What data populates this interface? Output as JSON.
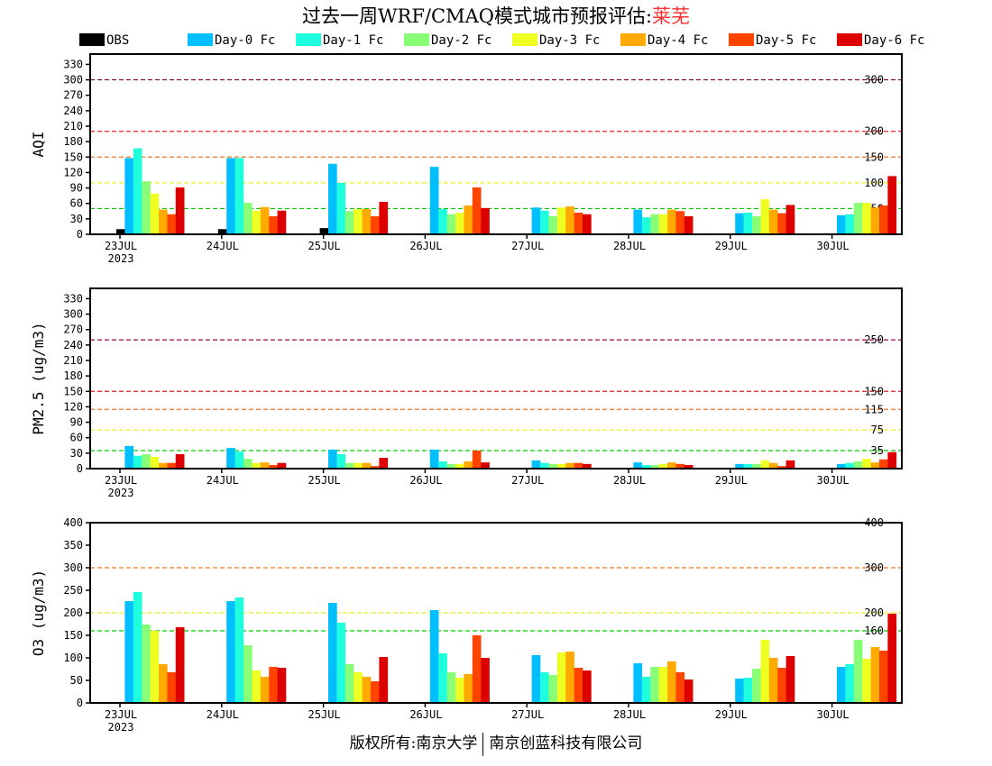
{
  "title": {
    "prefix": "过去一周WRF/CMAQ模式城市预报评估:",
    "city": "莱芜"
  },
  "footer": {
    "left": "版权所有:南京大学",
    "right": "南京创蓝科技有限公司"
  },
  "colors": {
    "OBS": "#000000",
    "Day-0 Fc": "#00bfff",
    "Day-1 Fc": "#20ffdd",
    "Day-2 Fc": "#88ff77",
    "Day-3 Fc": "#eeff22",
    "Day-4 Fc": "#ffaa00",
    "Day-5 Fc": "#ff4400",
    "Day-6 Fc": "#dd0000"
  },
  "chart_data": [
    {
      "type": "bar",
      "ylabel": "AQI",
      "ylim": [
        0,
        350
      ],
      "yticks": [
        0,
        30,
        60,
        90,
        120,
        150,
        180,
        210,
        240,
        270,
        300,
        330
      ],
      "categories": [
        "23JUL",
        "24JUL",
        "25JUL",
        "26JUL",
        "27JUL",
        "28JUL",
        "29JUL",
        "30JUL"
      ],
      "first_category_sub": "2023",
      "legend": [
        "OBS",
        "Day-0 Fc",
        "Day-1 Fc",
        "Day-2 Fc",
        "Day-3 Fc",
        "Day-4 Fc",
        "Day-5 Fc",
        "Day-6 Fc"
      ],
      "legend_position": "top",
      "ref_lines": [
        {
          "value": 300,
          "label": "300",
          "color": "#800040"
        },
        {
          "value": 200,
          "label": "200",
          "color": "#ff2020"
        },
        {
          "value": 150,
          "label": "150",
          "color": "#ee7722"
        },
        {
          "value": 100,
          "label": "100",
          "color": "#eeee22"
        },
        {
          "value": 50,
          "label": "50",
          "color": "#00cc00"
        }
      ],
      "series": [
        {
          "name": "OBS",
          "values": [
            10,
            10,
            12,
            null,
            null,
            null,
            null,
            null
          ]
        },
        {
          "name": "Day-0 Fc",
          "values": [
            148,
            148,
            137,
            131,
            52,
            48,
            41,
            37
          ]
        },
        {
          "name": "Day-1 Fc",
          "values": [
            167,
            148,
            100,
            49,
            46,
            33,
            42,
            39
          ]
        },
        {
          "name": "Day-2 Fc",
          "values": [
            103,
            61,
            45,
            39,
            35,
            39,
            35,
            61
          ]
        },
        {
          "name": "Day-3 Fc",
          "values": [
            79,
            46,
            49,
            42,
            52,
            39,
            68,
            61
          ]
        },
        {
          "name": "Day-4 Fc",
          "values": [
            48,
            53,
            49,
            56,
            54,
            48,
            48,
            52
          ]
        },
        {
          "name": "Day-5 Fc",
          "values": [
            39,
            35,
            35,
            91,
            42,
            45,
            41,
            56
          ]
        },
        {
          "name": "Day-6 Fc",
          "values": [
            91,
            46,
            63,
            51,
            39,
            35,
            57,
            113
          ]
        }
      ]
    },
    {
      "type": "bar",
      "ylabel": "PM2.5 (ug/m3)",
      "ylim": [
        0,
        350
      ],
      "yticks": [
        0,
        30,
        60,
        90,
        120,
        150,
        180,
        210,
        240,
        270,
        300,
        330
      ],
      "categories": [
        "23JUL",
        "24JUL",
        "25JUL",
        "26JUL",
        "27JUL",
        "28JUL",
        "29JUL",
        "30JUL"
      ],
      "first_category_sub": "2023",
      "ref_lines": [
        {
          "value": 250,
          "label": "250",
          "color": "#aa0055"
        },
        {
          "value": 150,
          "label": "150",
          "color": "#dd2020"
        },
        {
          "value": 115,
          "label": "115",
          "color": "#ee7722"
        },
        {
          "value": 75,
          "label": "75",
          "color": "#eeee22"
        },
        {
          "value": 35,
          "label": "35",
          "color": "#00cc00"
        }
      ],
      "series": [
        {
          "name": "OBS",
          "values": [
            null,
            null,
            null,
            null,
            null,
            null,
            null,
            null
          ]
        },
        {
          "name": "Day-0 Fc",
          "values": [
            44,
            40,
            37,
            37,
            16,
            12,
            9,
            9
          ]
        },
        {
          "name": "Day-1 Fc",
          "values": [
            25,
            33,
            28,
            14,
            11,
            7,
            9,
            11
          ]
        },
        {
          "name": "Day-2 Fc",
          "values": [
            28,
            19,
            11,
            9,
            9,
            7,
            9,
            14
          ]
        },
        {
          "name": "Day-3 Fc",
          "values": [
            23,
            11,
            11,
            9,
            9,
            9,
            16,
            19
          ]
        },
        {
          "name": "Day-4 Fc",
          "values": [
            11,
            12,
            11,
            14,
            11,
            12,
            11,
            12
          ]
        },
        {
          "name": "Day-5 Fc",
          "values": [
            11,
            7,
            5,
            35,
            11,
            9,
            5,
            18
          ]
        },
        {
          "name": "Day-6 Fc",
          "values": [
            28,
            11,
            21,
            12,
            9,
            7,
            16,
            32
          ]
        }
      ]
    },
    {
      "type": "bar",
      "ylabel": "O3 (ug/m3)",
      "ylim": [
        0,
        400
      ],
      "yticks": [
        0,
        50,
        100,
        150,
        200,
        250,
        300,
        350,
        400
      ],
      "categories": [
        "23JUL",
        "24JUL",
        "25JUL",
        "26JUL",
        "27JUL",
        "28JUL",
        "29JUL",
        "30JUL"
      ],
      "first_category_sub": "2023",
      "ref_lines": [
        {
          "value": 400,
          "label": "400",
          "color": "#ff2020"
        },
        {
          "value": 300,
          "label": "300",
          "color": "#ee7722"
        },
        {
          "value": 200,
          "label": "200",
          "color": "#eeee22"
        },
        {
          "value": 160,
          "label": "160",
          "color": "#00cc00"
        }
      ],
      "series": [
        {
          "name": "OBS",
          "values": [
            null,
            null,
            null,
            null,
            null,
            null,
            null,
            null
          ]
        },
        {
          "name": "Day-0 Fc",
          "values": [
            226,
            226,
            222,
            206,
            106,
            88,
            54,
            80
          ]
        },
        {
          "name": "Day-1 Fc",
          "values": [
            246,
            234,
            178,
            110,
            68,
            58,
            56,
            86
          ]
        },
        {
          "name": "Day-2 Fc",
          "values": [
            174,
            128,
            86,
            68,
            62,
            80,
            76,
            140
          ]
        },
        {
          "name": "Day-3 Fc",
          "values": [
            160,
            72,
            68,
            56,
            112,
            80,
            140,
            98
          ]
        },
        {
          "name": "Day-4 Fc",
          "values": [
            86,
            58,
            58,
            64,
            114,
            92,
            100,
            124
          ]
        },
        {
          "name": "Day-5 Fc",
          "values": [
            68,
            80,
            48,
            150,
            78,
            68,
            78,
            116
          ]
        },
        {
          "name": "Day-6 Fc",
          "values": [
            168,
            78,
            102,
            100,
            72,
            52,
            104,
            198
          ]
        }
      ]
    }
  ]
}
